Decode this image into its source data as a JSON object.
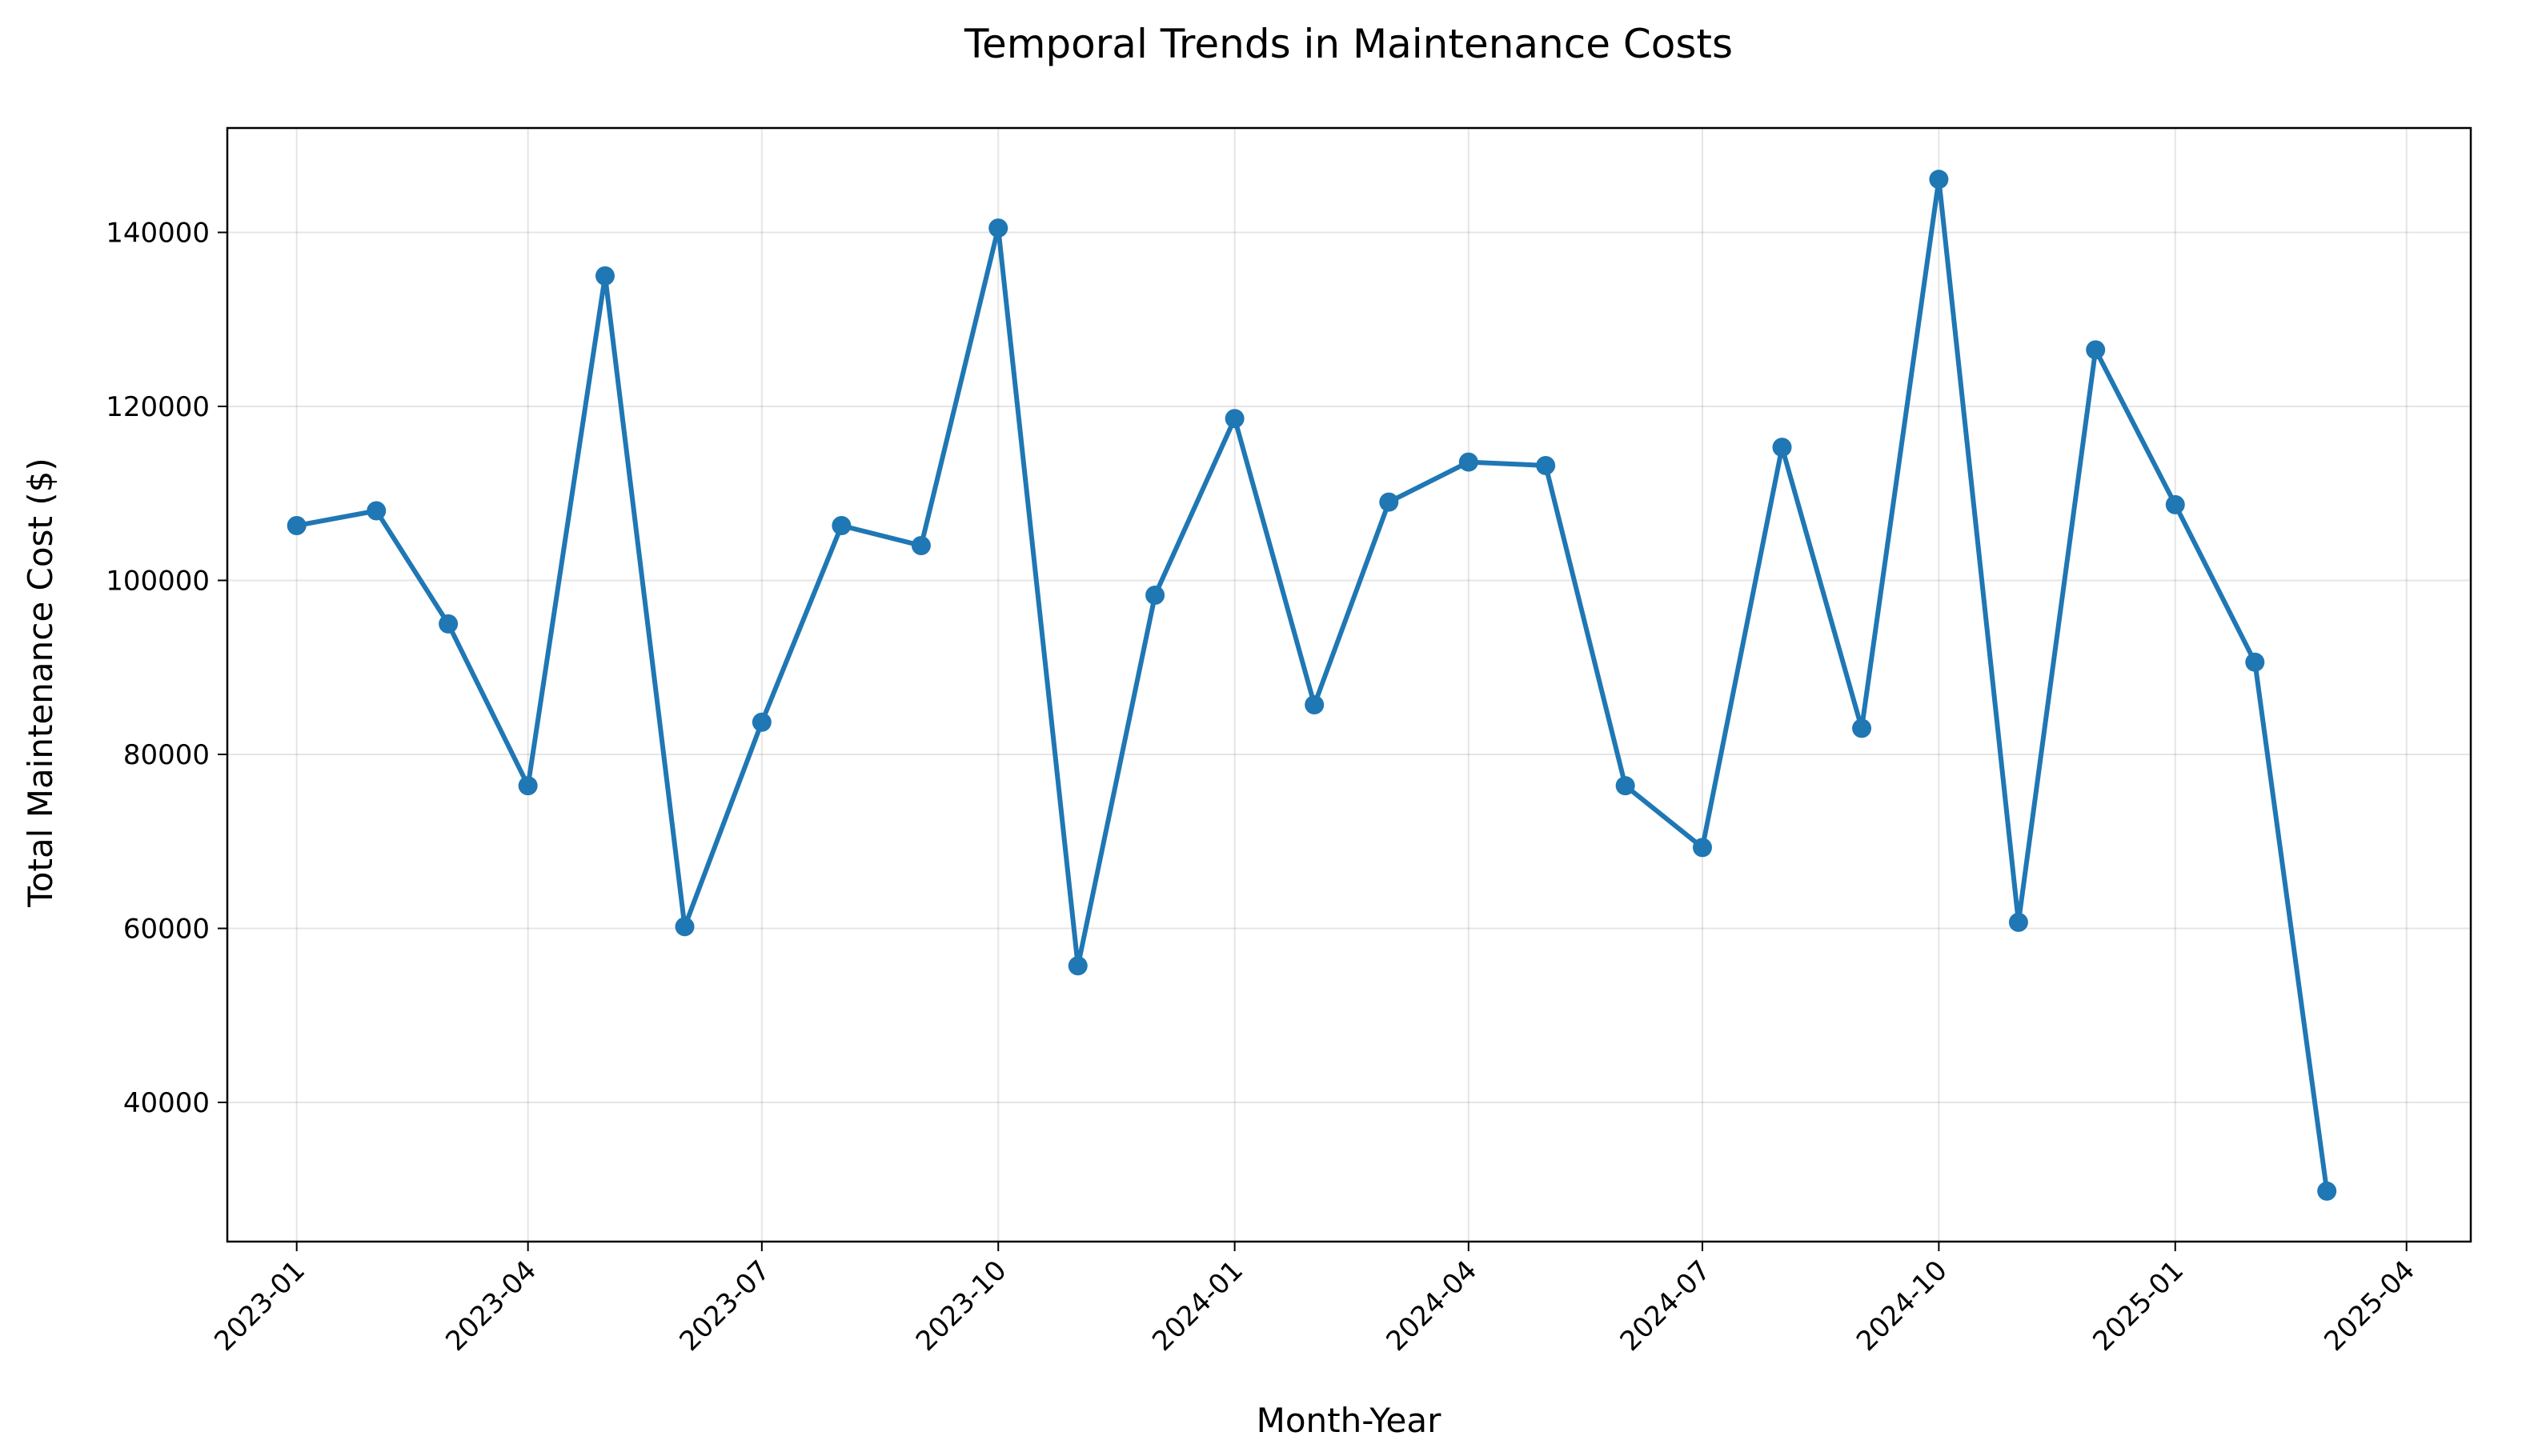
{
  "chart_data": {
    "type": "line",
    "title": "Temporal Trends in Maintenance Costs",
    "xlabel": "Month-Year",
    "ylabel": "Total Maintenance Cost ($)",
    "x_ticks": [
      "2023-01",
      "2023-04",
      "2023-07",
      "2023-10",
      "2024-01",
      "2024-04",
      "2024-07",
      "2024-10",
      "2025-01",
      "2025-04"
    ],
    "y_ticks": [
      40000,
      60000,
      80000,
      100000,
      120000,
      140000
    ],
    "ylim": [
      24000,
      152000
    ],
    "xlim": [
      "2022-12-05",
      "2025-04-26"
    ],
    "grid": true,
    "line_color": "#1f77b4",
    "marker": "circle",
    "series": [
      {
        "x": [
          "2023-01",
          "2023-02",
          "2023-03",
          "2023-04",
          "2023-05",
          "2023-06",
          "2023-07",
          "2023-08",
          "2023-09",
          "2023-10",
          "2023-11",
          "2023-12",
          "2024-01",
          "2024-02",
          "2024-03",
          "2024-04",
          "2024-05",
          "2024-06",
          "2024-07",
          "2024-08",
          "2024-09",
          "2024-10",
          "2024-11",
          "2024-12",
          "2025-01",
          "2025-02",
          "2025-03"
        ],
        "values": [
          106300,
          108000,
          95000,
          76400,
          135000,
          60200,
          83700,
          106300,
          104000,
          140500,
          55700,
          98300,
          118600,
          85700,
          109000,
          113600,
          113200,
          76400,
          69300,
          115300,
          83000,
          146100,
          60700,
          126500,
          108700,
          90600,
          29800
        ]
      }
    ]
  }
}
